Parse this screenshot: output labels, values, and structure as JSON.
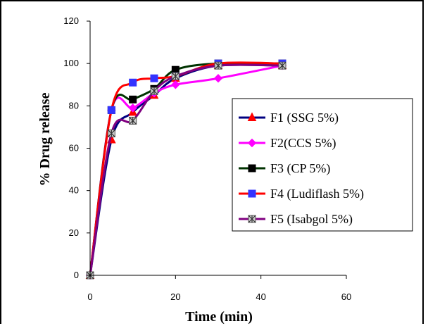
{
  "chart_data": {
    "type": "line",
    "xlabel": "Time (min)",
    "ylabel": "% Drug release",
    "xlim": [
      0,
      60
    ],
    "ylim": [
      0,
      120
    ],
    "xticks": [
      0,
      20,
      40,
      60
    ],
    "yticks": [
      0,
      20,
      40,
      60,
      80,
      100,
      120
    ],
    "grid": false,
    "legend_position": "right",
    "x": [
      0,
      5,
      10,
      15,
      20,
      30,
      45
    ],
    "series": [
      {
        "name": "F1 (SSG 5%)",
        "color": "#ff0000",
        "line_color": "#000080",
        "marker": "triangle",
        "values": [
          0,
          64,
          77,
          85,
          93,
          99,
          99
        ]
      },
      {
        "name": "F2(CCS 5%)",
        "color": "#ff00ff",
        "line_color": "#ff00ff",
        "marker": "diamond",
        "values": [
          0,
          78,
          79,
          86,
          90,
          93,
          99
        ]
      },
      {
        "name": "F3 (CP 5%)",
        "color": "#000000",
        "line_color": "#003300",
        "marker": "square",
        "values": [
          0,
          78,
          83,
          88,
          97,
          100,
          100
        ]
      },
      {
        "name": "F4 (Ludiflash 5%)",
        "color": "#3333ff",
        "line_color": "#ff0000",
        "marker": "square",
        "values": [
          0,
          78,
          91,
          93,
          94,
          100,
          100
        ]
      },
      {
        "name": "F5 (Isabgol 5%)",
        "color": "#999999",
        "line_color": "#800080",
        "marker": "star",
        "values": [
          0,
          67,
          73,
          87,
          94,
          99,
          99
        ]
      }
    ]
  }
}
